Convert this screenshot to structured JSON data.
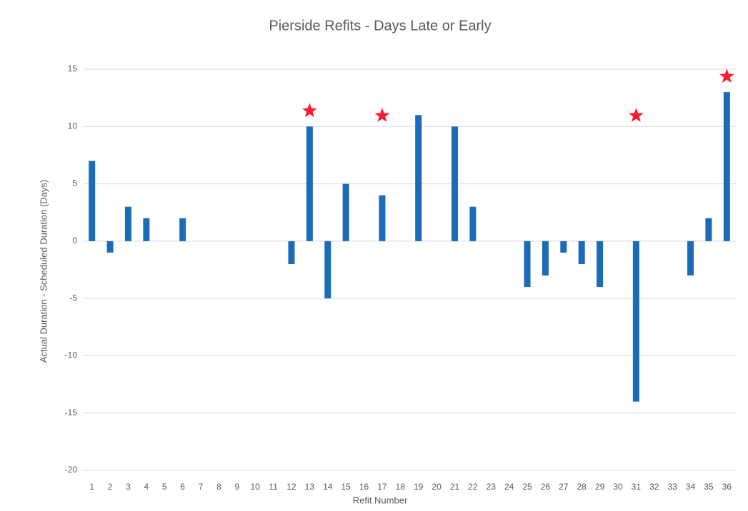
{
  "chart_data": {
    "type": "bar",
    "title": "Pierside Refits - Days Late or Early",
    "x_label": "Refit Number",
    "y_label": "Actual Duration - Scheduled Duration (Days)",
    "categories": [
      "1",
      "2",
      "3",
      "4",
      "5",
      "6",
      "7",
      "8",
      "9",
      "10",
      "11",
      "12",
      "13",
      "14",
      "15",
      "16",
      "17",
      "18",
      "19",
      "20",
      "21",
      "22",
      "23",
      "24",
      "25",
      "26",
      "27",
      "28",
      "29",
      "30",
      "31",
      "32",
      "33",
      "34",
      "35",
      "36"
    ],
    "values": [
      7,
      -1,
      3,
      2,
      0,
      2,
      0,
      0,
      0,
      0,
      0,
      -2,
      10,
      -5,
      5,
      0,
      4,
      0,
      11,
      0,
      10,
      3,
      0,
      0,
      -4,
      -3,
      -1,
      -2,
      -4,
      0,
      -14,
      0,
      0,
      -3,
      2,
      13
    ],
    "color": "#1a6cb8",
    "starred": [
      "13",
      "17",
      "31",
      "36"
    ],
    "star_color": "#ff1a2e",
    "ylim": [
      -20,
      15
    ],
    "yticks": [
      -20,
      -15,
      -10,
      -5,
      0,
      5,
      10,
      15
    ],
    "grid": true
  }
}
